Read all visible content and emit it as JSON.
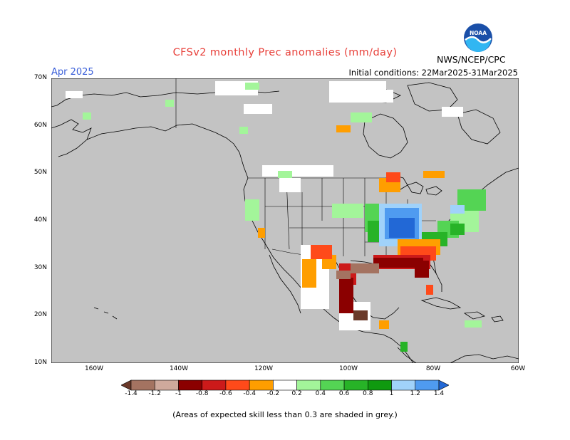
{
  "header": {
    "title": "CFSv2 monthly Prec anomalies (mm/day)",
    "month": "Apr 2025",
    "initial_conditions": "Initial conditions: 22Mar2025-31Mar2025",
    "agency": "NWS/NCEP/CPC"
  },
  "logo": {
    "text": "NOAA",
    "icon": "noaa-logo-icon"
  },
  "axes": {
    "lat_labels": [
      "70N",
      "60N",
      "50N",
      "40N",
      "30N",
      "20N",
      "10N"
    ],
    "lon_labels": [
      "160W",
      "140W",
      "120W",
      "100W",
      "80W",
      "60W"
    ]
  },
  "colorbar": {
    "labels": [
      "-1.4",
      "-1.2",
      "-1",
      "-0.8",
      "-0.6",
      "-0.4",
      "-0.2",
      "0.2",
      "0.4",
      "0.6",
      "0.8",
      "1",
      "1.2",
      "1.4"
    ],
    "colors": [
      "#6b3a2a",
      "#a47361",
      "#cfa99c",
      "#8b0000",
      "#cc1a1a",
      "#ff4a1a",
      "#ff9e00",
      "#ffffff",
      "#a3f59a",
      "#54d454",
      "#27b327",
      "#0f9a0f",
      "#a0d2fa",
      "#4f9bf0",
      "#2268d6"
    ]
  },
  "colors": {
    "skill_grey": "#c3c3c3",
    "title": "#e8403a",
    "month": "#3a5fd9"
  },
  "footnote": "(Areas of expected skill less than 0.3 are shaded in grey.)"
}
